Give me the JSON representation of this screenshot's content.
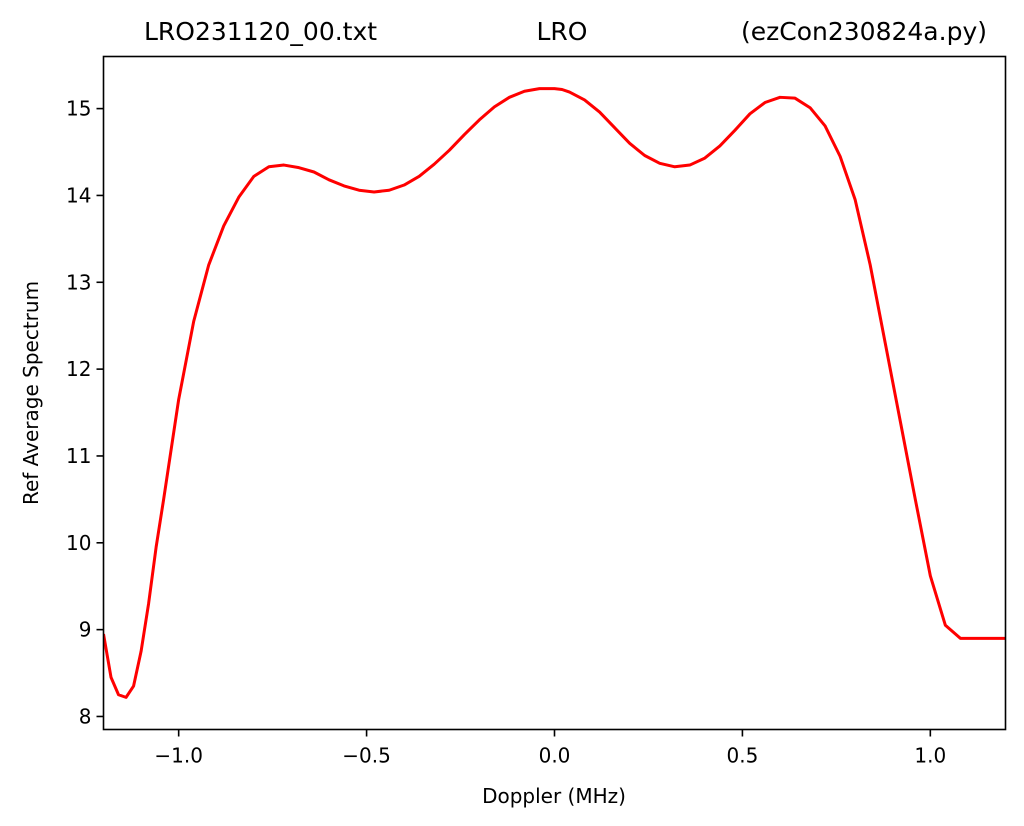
{
  "chart_data": {
    "type": "line",
    "title_left": "LRO231120_00.txt",
    "title_center": "LRO",
    "title_right": "(ezCon230824a.py)",
    "xlabel": "Doppler (MHz)",
    "ylabel": "Ref Average Spectrum",
    "xlim": [
      -1.2,
      1.2
    ],
    "ylim": [
      7.85,
      15.6
    ],
    "xticks": [
      {
        "value": -1.0,
        "label": "−1.0"
      },
      {
        "value": -0.5,
        "label": "−0.5"
      },
      {
        "value": 0.0,
        "label": "0.0"
      },
      {
        "value": 0.5,
        "label": "0.5"
      },
      {
        "value": 1.0,
        "label": "1.0"
      }
    ],
    "yticks": [
      {
        "value": 8,
        "label": "8"
      },
      {
        "value": 9,
        "label": "9"
      },
      {
        "value": 10,
        "label": "10"
      },
      {
        "value": 11,
        "label": "11"
      },
      {
        "value": 12,
        "label": "12"
      },
      {
        "value": 13,
        "label": "13"
      },
      {
        "value": 14,
        "label": "14"
      },
      {
        "value": 15,
        "label": "15"
      }
    ],
    "grid": false,
    "series": [
      {
        "color": "#ff0000",
        "x": [
          -1.2,
          -1.18,
          -1.16,
          -1.14,
          -1.12,
          -1.1,
          -1.08,
          -1.06,
          -1.04,
          -1.0,
          -0.96,
          -0.92,
          -0.88,
          -0.84,
          -0.8,
          -0.76,
          -0.72,
          -0.68,
          -0.64,
          -0.6,
          -0.56,
          -0.52,
          -0.48,
          -0.44,
          -0.4,
          -0.36,
          -0.32,
          -0.28,
          -0.24,
          -0.2,
          -0.16,
          -0.12,
          -0.08,
          -0.04,
          0.0,
          0.02,
          0.04,
          0.08,
          0.12,
          0.16,
          0.2,
          0.24,
          0.28,
          0.32,
          0.36,
          0.4,
          0.44,
          0.48,
          0.52,
          0.56,
          0.6,
          0.64,
          0.68,
          0.72,
          0.76,
          0.8,
          0.84,
          0.88,
          0.92,
          0.96,
          1.0,
          1.04,
          1.08,
          1.12,
          1.16,
          1.2
        ],
        "y": [
          8.95,
          8.45,
          8.25,
          8.22,
          8.35,
          8.75,
          9.3,
          9.95,
          10.5,
          11.65,
          12.55,
          13.2,
          13.65,
          13.98,
          14.22,
          14.33,
          14.35,
          14.32,
          14.27,
          14.18,
          14.11,
          14.06,
          14.04,
          14.06,
          14.12,
          14.22,
          14.36,
          14.52,
          14.7,
          14.87,
          15.02,
          15.13,
          15.2,
          15.23,
          15.23,
          15.22,
          15.19,
          15.1,
          14.96,
          14.78,
          14.6,
          14.46,
          14.37,
          14.33,
          14.35,
          14.43,
          14.57,
          14.75,
          14.94,
          15.07,
          15.13,
          15.12,
          15.01,
          14.8,
          14.45,
          13.95,
          13.2,
          12.3,
          11.4,
          10.5,
          9.62,
          9.05,
          8.9,
          8.9,
          8.9,
          8.9
        ]
      }
    ]
  }
}
